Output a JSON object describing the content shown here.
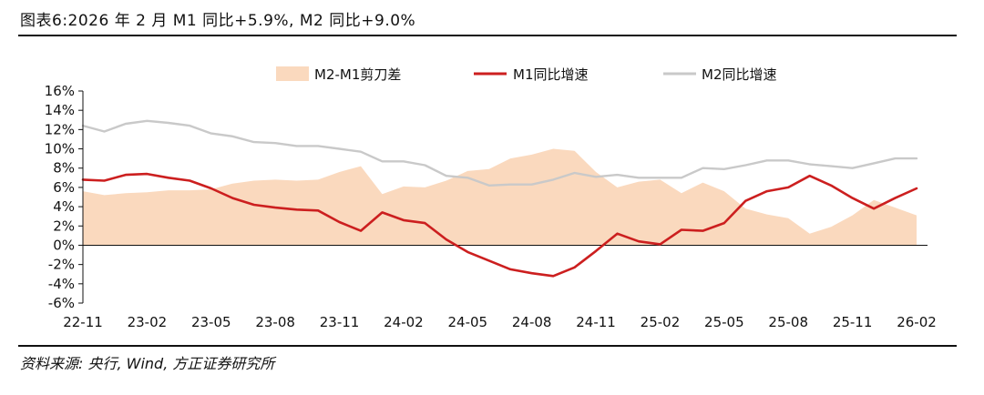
{
  "header": {
    "title": "图表6:2026 年 2 月 M1 同比+5.9%, M2 同比+9.0%"
  },
  "footer": {
    "source": "资料来源: 央行, Wind, 方正证券研究所"
  },
  "colors": {
    "m1": "#cc1f1f",
    "m2": "#c9c9c9",
    "spread": "#fad9be",
    "axis": "#111111"
  },
  "chart_data": {
    "type": "line",
    "title": "图表6:2026 年 2 月 M1 同比+5.9%, M2 同比+9.0%",
    "xlabel": "",
    "ylabel": "",
    "ylim": [
      -6,
      16
    ],
    "yticks": [
      -6,
      -4,
      -2,
      0,
      2,
      4,
      6,
      8,
      10,
      12,
      14,
      16
    ],
    "ytick_labels": [
      "-6%",
      "-4%",
      "-2%",
      "0%",
      "2%",
      "4%",
      "6%",
      "8%",
      "10%",
      "12%",
      "14%",
      "16%"
    ],
    "x_tick_labels": [
      "22-11",
      "23-02",
      "23-05",
      "23-08",
      "23-11",
      "24-02",
      "24-05",
      "24-08",
      "24-11",
      "25-02",
      "25-05",
      "25-08",
      "25-11",
      "26-02"
    ],
    "x": [
      "22-11",
      "22-12",
      "23-01",
      "23-02",
      "23-03",
      "23-04",
      "23-05",
      "23-06",
      "23-07",
      "23-08",
      "23-09",
      "23-10",
      "23-11",
      "23-12",
      "24-01",
      "24-02",
      "24-03",
      "24-04",
      "24-05",
      "24-06",
      "24-07",
      "24-08",
      "24-09",
      "24-10",
      "24-11",
      "24-12",
      "25-01",
      "25-02",
      "25-03",
      "25-04",
      "25-05",
      "25-06",
      "25-07",
      "25-08",
      "25-09",
      "25-10",
      "25-11",
      "25-12",
      "26-01",
      "26-02"
    ],
    "legend": [
      "M2-M1剪刀差",
      "M1同比增速",
      "M2同比增速"
    ],
    "legend_position": "top",
    "series": [
      {
        "name": "M2-M1剪刀差",
        "kind": "area",
        "values": [
          5.6,
          5.2,
          5.4,
          5.5,
          5.7,
          5.7,
          5.8,
          6.4,
          6.7,
          6.8,
          6.7,
          6.8,
          7.6,
          8.2,
          5.3,
          6.1,
          6.0,
          6.7,
          7.7,
          7.9,
          9.0,
          9.4,
          10.0,
          9.8,
          7.6,
          6.0,
          6.6,
          6.8,
          5.4,
          6.5,
          5.6,
          3.8,
          3.2,
          2.8,
          1.2,
          1.9,
          3.1,
          4.7,
          3.9,
          3.1
        ]
      },
      {
        "name": "M1同比增速",
        "kind": "line",
        "values": [
          6.8,
          6.7,
          7.3,
          7.4,
          7.0,
          6.7,
          5.9,
          4.9,
          4.2,
          3.9,
          3.7,
          3.6,
          2.4,
          1.5,
          3.4,
          2.6,
          2.3,
          0.6,
          -0.7,
          -1.6,
          -2.5,
          -2.9,
          -3.2,
          -2.3,
          -0.6,
          1.2,
          0.4,
          0.1,
          1.6,
          1.5,
          2.3,
          4.6,
          5.6,
          6.0,
          7.2,
          6.2,
          4.9,
          3.8,
          4.9,
          5.9
        ]
      },
      {
        "name": "M2同比增速",
        "kind": "line",
        "values": [
          12.4,
          11.8,
          12.6,
          12.9,
          12.7,
          12.4,
          11.6,
          11.3,
          10.7,
          10.6,
          10.3,
          10.3,
          10.0,
          9.7,
          8.7,
          8.7,
          8.3,
          7.2,
          7.0,
          6.2,
          6.3,
          6.3,
          6.8,
          7.5,
          7.1,
          7.3,
          7.0,
          7.0,
          7.0,
          8.0,
          7.9,
          8.3,
          8.8,
          8.8,
          8.4,
          8.2,
          8.0,
          8.5,
          9.0,
          9.0
        ]
      }
    ]
  }
}
